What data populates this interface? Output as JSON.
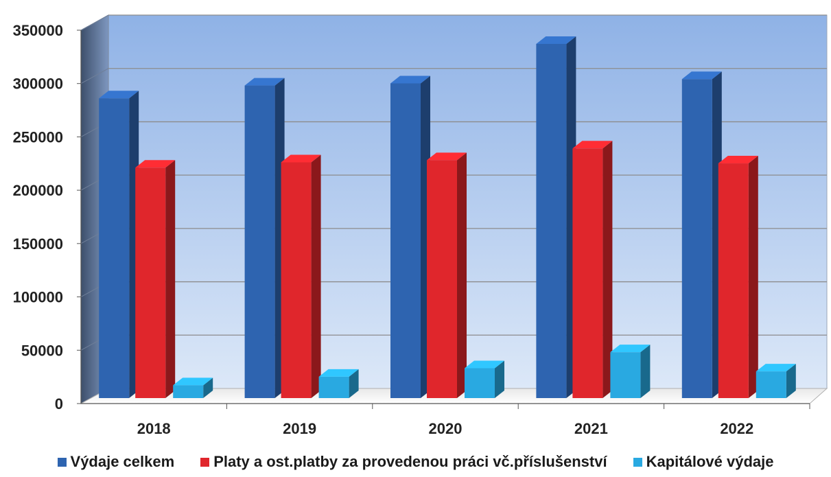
{
  "chart_data": {
    "type": "bar",
    "categories": [
      "2018",
      "2019",
      "2020",
      "2021",
      "2022"
    ],
    "series": [
      {
        "name": "Výdaje celkem",
        "values": [
          281000,
          293000,
          295000,
          332000,
          299000
        ],
        "color": "#2E64B0"
      },
      {
        "name": "Platy a ost.platby za provedenou práci vč.příslušenství",
        "values": [
          216000,
          221000,
          223000,
          234000,
          220000
        ],
        "color": "#E0262C"
      },
      {
        "name": "Kapitálové výdaje",
        "values": [
          12000,
          20000,
          28000,
          43000,
          25000
        ],
        "color": "#29A9E1"
      }
    ],
    "y_ticks": [
      "0",
      "50000",
      "100000",
      "150000",
      "200000",
      "250000",
      "300000",
      "350000"
    ],
    "ylim": [
      0,
      350000
    ],
    "grid": true,
    "legend_position": "bottom",
    "title": "",
    "xlabel": "",
    "ylabel": ""
  }
}
